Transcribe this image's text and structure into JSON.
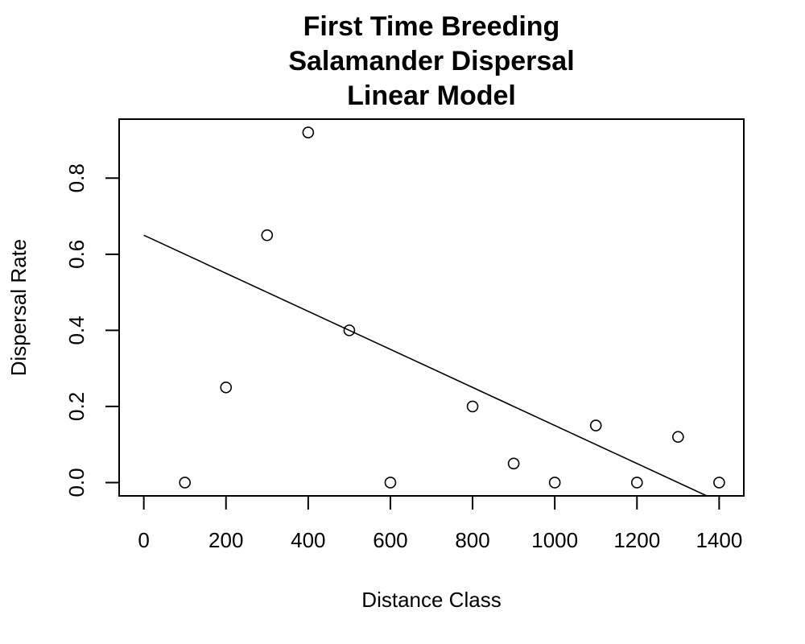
{
  "chart_data": {
    "type": "scatter",
    "title": [
      "First Time Breeding",
      "Salamander Dispersal",
      "Linear Model"
    ],
    "xlabel": "Distance Class",
    "ylabel": "Dispersal Rate",
    "xlim": [
      -60,
      1460
    ],
    "ylim": [
      -0.035,
      0.955
    ],
    "x_ticks": [
      0,
      200,
      400,
      600,
      800,
      1000,
      1200,
      1400
    ],
    "y_ticks": [
      0.0,
      0.2,
      0.4,
      0.6,
      0.8
    ],
    "x_tick_labels": [
      "0",
      "200",
      "400",
      "600",
      "800",
      "1000",
      "1200",
      "1400"
    ],
    "y_tick_labels": [
      "0.0",
      "0.2",
      "0.4",
      "0.6",
      "0.8"
    ],
    "grid": false,
    "series": [
      {
        "x": [
          100,
          200,
          300,
          400,
          500,
          600,
          800,
          900,
          1000,
          1100,
          1200,
          1300,
          1400
        ],
        "y": [
          0.0,
          0.25,
          0.65,
          0.92,
          0.4,
          0.0,
          0.2,
          0.05,
          0.0,
          0.15,
          0.0,
          0.12,
          0.0
        ]
      }
    ],
    "fit_line": {
      "type": "linear",
      "x": [
        0,
        1370
      ],
      "y": [
        0.65,
        -0.035
      ]
    }
  }
}
